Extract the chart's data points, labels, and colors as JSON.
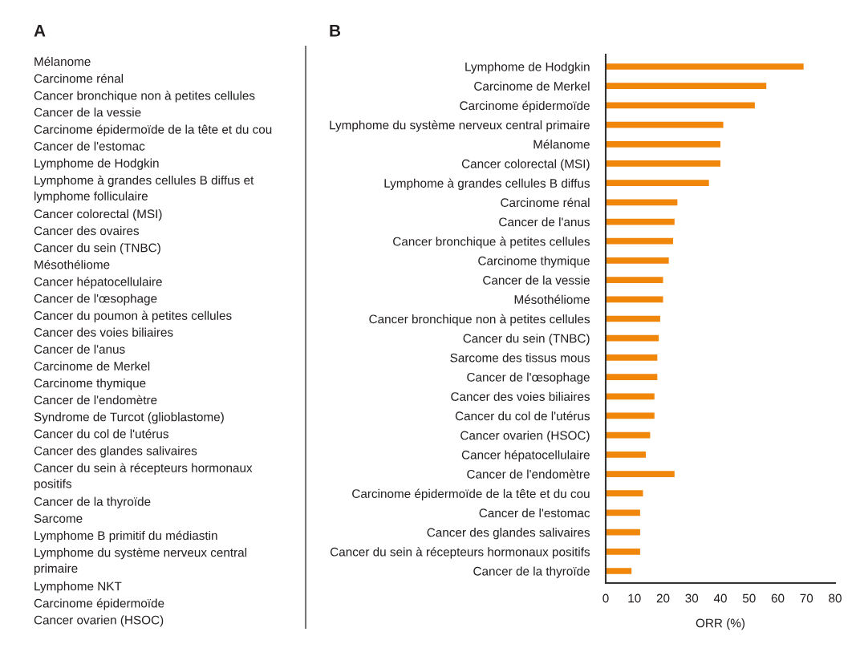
{
  "chart_data": [
    {
      "type": "other",
      "title": "A",
      "annotations": [
        "Mélanome",
        "Carcinome rénal",
        "Cancer bronchique non à petites cellules",
        "Cancer de la vessie",
        "Carcinome épidermoïde de la tête et du cou",
        "Cancer de l'estomac",
        "Lymphome de Hodgkin",
        "Lymphome à grandes cellules B diffus et\nlymphome folliculaire",
        "Cancer colorectal (MSI)",
        "Cancer des ovaires",
        "Cancer du sein (TNBC)",
        "Mésothéliome",
        "Cancer hépatocellulaire",
        "Cancer de l'œsophage",
        "Cancer du poumon à petites cellules",
        "Cancer des voies biliaires",
        "Cancer de l'anus",
        "Carcinome de Merkel",
        "Carcinome thymique",
        "Cancer de l'endomètre",
        "Syndrome de Turcot (glioblastome)",
        "Cancer du col de l'utérus",
        "Cancer des glandes salivaires",
        "Cancer du sein à récepteurs hormonaux\npositifs",
        "Cancer de la thyroïde",
        "Sarcome",
        "Lymphome B primitif du médiastin",
        "Lymphome du système nerveux central\nprimaire",
        "Lymphome NKT",
        "Carcinome épidermoïde",
        "Cancer ovarien (HSOC)"
      ]
    },
    {
      "type": "bar",
      "title": "B",
      "orientation": "horizontal",
      "xlabel": "ORR (%)",
      "color": "#f0860a",
      "categories": [
        "Lymphome de Hodgkin",
        "Carcinome de Merkel",
        "Carcinome épidermoïde",
        "Lymphome du système nerveux central primaire",
        "Mélanome",
        "Cancer colorectal (MSI)",
        "Lymphome à grandes cellules B diffus",
        "Carcinome rénal",
        "Cancer de l'anus",
        "Cancer bronchique à petites cellules",
        "Carcinome thymique",
        "Cancer de la vessie",
        "Mésothéliome",
        "Cancer bronchique non à petites cellules",
        "Cancer du sein (TNBC)",
        "Sarcome des tissus mous",
        "Cancer de l'œsophage",
        "Cancer des voies biliaires",
        "Cancer du col de l'utérus",
        "Cancer ovarien (HSOC)",
        "Cancer hépatocellulaire",
        "Cancer de l'endomètre",
        "Carcinome épidermoïde de la tête et du cou",
        "Cancer de l'estomac",
        "Cancer des glandes salivaires",
        "Cancer du sein à récepteurs hormonaux positifs",
        "Cancer de la thyroïde"
      ],
      "values": [
        69,
        56,
        52,
        41,
        40,
        40,
        36,
        25,
        24,
        23.5,
        22,
        20,
        20,
        19,
        18.5,
        18,
        18,
        17,
        17,
        15.5,
        14,
        24,
        13,
        12,
        12,
        12,
        9
      ],
      "xlim": [
        0,
        80
      ],
      "xticks": [
        0,
        10,
        20,
        30,
        40,
        50,
        60,
        70,
        80
      ],
      "grid": false
    }
  ]
}
